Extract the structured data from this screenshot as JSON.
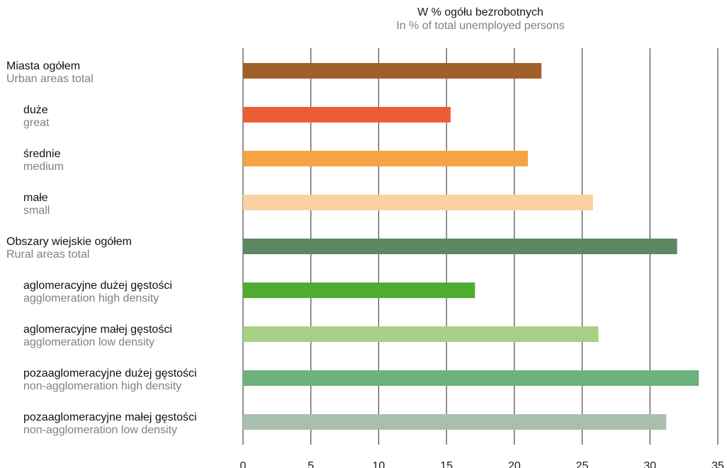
{
  "chart_data": {
    "type": "bar",
    "orientation": "horizontal",
    "title": "W % ogółu bezrobotnych",
    "subtitle": "In % of total unemployed persons",
    "xlim": [
      0,
      35
    ],
    "xticks": [
      0,
      5,
      10,
      15,
      20,
      25,
      30,
      35
    ],
    "grid": true,
    "categories": [
      {
        "label_pl": "Miasta ogółem",
        "label_en": "Urban areas total",
        "value": 22.0,
        "color": "#A0602A",
        "indent": false
      },
      {
        "label_pl": "duże",
        "label_en": "great",
        "value": 15.3,
        "color": "#EC5D36",
        "indent": true
      },
      {
        "label_pl": "średnie",
        "label_en": "medium",
        "value": 21.0,
        "color": "#F5A343",
        "indent": true
      },
      {
        "label_pl": "małe",
        "label_en": "small",
        "value": 25.8,
        "color": "#FBD0A3",
        "indent": true
      },
      {
        "label_pl": "Obszary wiejskie ogółem",
        "label_en": "Rural areas total",
        "value": 32.0,
        "color": "#5E8661",
        "indent": false
      },
      {
        "label_pl": "aglomeracyjne dużej gęstości",
        "label_en": "agglomeration high density",
        "value": 17.1,
        "color": "#4EAD31",
        "indent": true
      },
      {
        "label_pl": "aglomeracyjne małej gęstości",
        "label_en": "agglomeration low density",
        "value": 26.2,
        "color": "#A8CF86",
        "indent": true
      },
      {
        "label_pl": "pozaaglomeracyjne dużej gęstości",
        "label_en": "non-agglomeration high density",
        "value": 33.6,
        "color": "#6BB27C",
        "indent": true
      },
      {
        "label_pl": "pozaaglomeracyjne małej gęstości",
        "label_en": "non-agglomeration low density",
        "value": 31.2,
        "color": "#A9BFAE",
        "indent": true
      }
    ]
  }
}
